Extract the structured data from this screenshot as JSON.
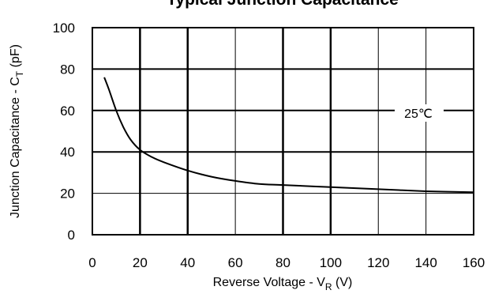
{
  "chart_data": {
    "type": "line",
    "title": "Typical Junction Capacitance",
    "xlabel_main": "Reverse Voltage - V",
    "xlabel_sub": "R",
    "xlabel_unit": " (V)",
    "ylabel_main": "Junction Capacitance - C",
    "ylabel_sub": "T",
    "ylabel_unit": " (pF)",
    "xlim": [
      0,
      160
    ],
    "ylim": [
      0,
      100
    ],
    "x_ticks": [
      "0",
      "20",
      "40",
      "60",
      "80",
      "100",
      "120",
      "140",
      "160"
    ],
    "y_ticks": [
      "0",
      "20",
      "40",
      "60",
      "80",
      "100"
    ],
    "grid": true,
    "annotation": "25℃",
    "series": [
      {
        "x": [
          5,
          7,
          10,
          13,
          16,
          20,
          25,
          30,
          40,
          50,
          60,
          70,
          80,
          100,
          120,
          140,
          160
        ],
        "y": [
          76,
          70,
          60,
          52,
          46,
          41,
          37.5,
          35,
          31,
          28,
          26,
          24.5,
          24,
          23,
          22,
          21,
          20.5
        ]
      }
    ]
  }
}
